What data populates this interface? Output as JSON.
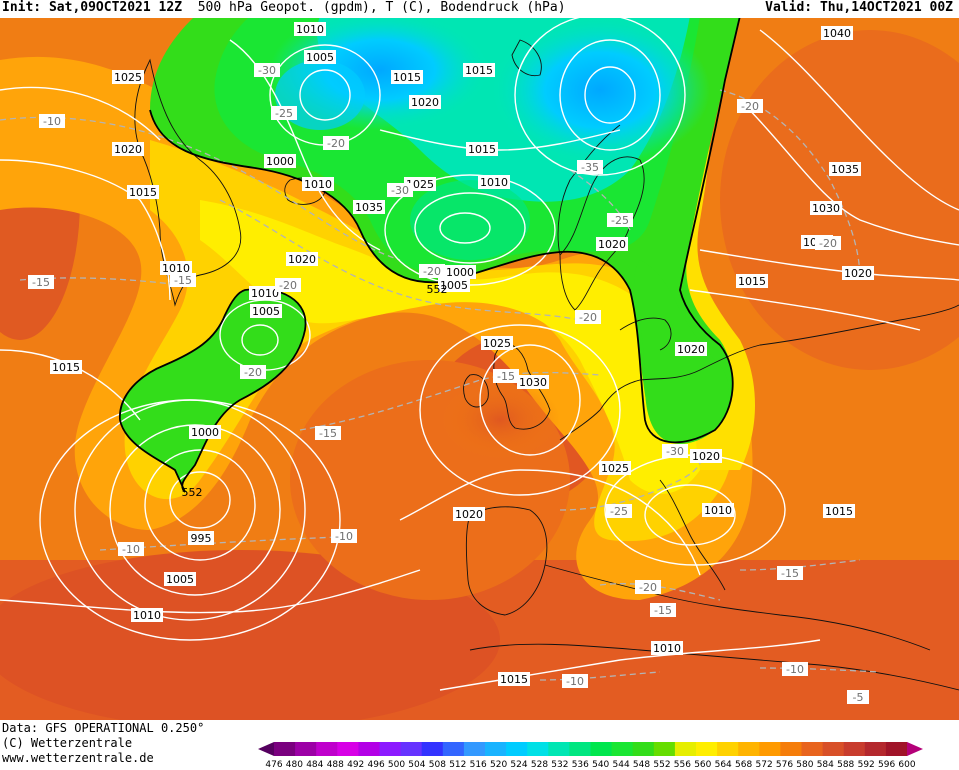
{
  "header": {
    "init_label": "Init:",
    "init_value": "Sat,09OCT2021 12Z",
    "description": "500 hPa Geopot. (gpdm), T (C), Bodendruck (hPa)",
    "valid_label": "Valid:",
    "valid_value": "Thu,14OCT2021 00Z"
  },
  "footer": {
    "data_line": "Data: GFS OPERATIONAL 0.250°",
    "copyright": "(C) Wetterzentrale",
    "website": "www.wetterzentrale.de"
  },
  "colorbar": {
    "ticks": [
      "476",
      "480",
      "484",
      "488",
      "492",
      "496",
      "500",
      "504",
      "508",
      "512",
      "516",
      "520",
      "524",
      "528",
      "532",
      "536",
      "540",
      "544",
      "548",
      "552",
      "556",
      "560",
      "564",
      "568",
      "572",
      "576",
      "580",
      "584",
      "588",
      "592",
      "596",
      "600"
    ],
    "colors": [
      "#55005f",
      "#7a007f",
      "#9c00a6",
      "#bf00cc",
      "#d700e6",
      "#b300e6",
      "#8c1aff",
      "#6633ff",
      "#3333ff",
      "#3366ff",
      "#3399ff",
      "#19b3ff",
      "#00ccff",
      "#00e0e6",
      "#00e6b3",
      "#00e680",
      "#00e64d",
      "#1ae633",
      "#33dd1a",
      "#66dd00",
      "#e6ee00",
      "#ffee00",
      "#ffd200",
      "#ffb400",
      "#ff9a00",
      "#f57d0a",
      "#e8641e",
      "#d85028",
      "#c83c2d",
      "#b4282d",
      "#a01428",
      "#b40078"
    ]
  },
  "map": {
    "pressure_labels": [
      {
        "text": "1010"
      },
      {
        "text": "1005"
      },
      {
        "text": "1025"
      },
      {
        "text": "1015"
      },
      {
        "text": "1015"
      },
      {
        "text": "1020"
      },
      {
        "text": "1040"
      },
      {
        "text": "1020"
      },
      {
        "text": "1000"
      },
      {
        "text": "1015"
      },
      {
        "text": "1010"
      },
      {
        "text": "1025"
      },
      {
        "text": "1010"
      },
      {
        "text": "1015"
      },
      {
        "text": "1035"
      },
      {
        "text": "1035"
      },
      {
        "text": "1030"
      },
      {
        "text": "1025"
      },
      {
        "text": "1020"
      },
      {
        "text": "1020"
      },
      {
        "text": "1020"
      },
      {
        "text": "1000"
      },
      {
        "text": "1005"
      },
      {
        "text": "1010"
      },
      {
        "text": "1010"
      },
      {
        "text": "1005"
      },
      {
        "text": "1015"
      },
      {
        "text": "1015"
      },
      {
        "text": "1025"
      },
      {
        "text": "1030"
      },
      {
        "text": "1020"
      },
      {
        "text": "1000"
      },
      {
        "text": "995"
      },
      {
        "text": "1025"
      },
      {
        "text": "1020"
      },
      {
        "text": "1020"
      },
      {
        "text": "1010"
      },
      {
        "text": "1015"
      },
      {
        "text": "1005"
      },
      {
        "text": "1010"
      },
      {
        "text": "1010"
      },
      {
        "text": "1015"
      }
    ],
    "temperature_labels": [
      {
        "text": "-10"
      },
      {
        "text": "-30"
      },
      {
        "text": "-25"
      },
      {
        "text": "-20"
      },
      {
        "text": "-20"
      },
      {
        "text": "-35"
      },
      {
        "text": "-25"
      },
      {
        "text": "-15"
      },
      {
        "text": "-15"
      },
      {
        "text": "-20"
      },
      {
        "text": "-20"
      },
      {
        "text": "-20"
      },
      {
        "text": "-15"
      },
      {
        "text": "-15"
      },
      {
        "text": "-10"
      },
      {
        "text": "-10"
      },
      {
        "text": "-25"
      },
      {
        "text": "-30"
      },
      {
        "text": "-20"
      },
      {
        "text": "-15"
      },
      {
        "text": "-15"
      },
      {
        "text": "-10"
      },
      {
        "text": "-10"
      },
      {
        "text": "-5"
      },
      {
        "text": "-20"
      },
      {
        "text": "-30"
      },
      {
        "text": "-20"
      }
    ],
    "contour_labels": [
      {
        "text": "552"
      },
      {
        "text": "552"
      }
    ]
  }
}
